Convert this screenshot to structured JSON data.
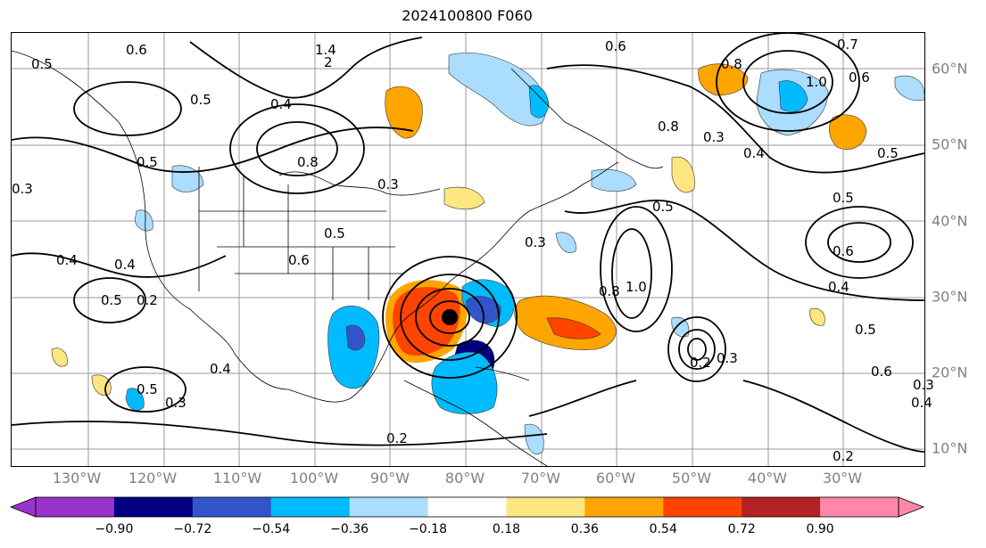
{
  "title": "2024100800 F060",
  "lon_labels": [
    "130°W",
    "120°W",
    "110°W",
    "100°W",
    "90°W",
    "80°W",
    "70°W",
    "60°W",
    "50°W",
    "40°W",
    "30°W"
  ],
  "lat_labels": [
    "60°N",
    "50°N",
    "40°N",
    "30°N",
    "20°N",
    "10°N"
  ],
  "colorbar": {
    "ticks": [
      "−0.90",
      "−0.72",
      "−0.54",
      "−0.36",
      "−0.18",
      "0.18",
      "0.36",
      "0.54",
      "0.72",
      "0.90"
    ],
    "colors": [
      "#9933cc",
      "#000080",
      "#3355cc",
      "#00bbff",
      "#aaddff",
      "#ffffff",
      "#ffe680",
      "#ffa500",
      "#ff4400",
      "#b22222",
      "#ff88aa",
      "#ff88aa"
    ]
  },
  "contour_labels": [
    "0.6",
    "0.5",
    "0.5",
    "1.4",
    "2",
    "0.4",
    "0.8",
    "0.5",
    "0.3",
    "0.3",
    "0.4",
    "0.5",
    "0.2",
    "0.4",
    "0.3",
    "0.5",
    "0.4",
    "0.2",
    "0.3",
    "0.5",
    "0.6",
    "0.8",
    "1.0",
    "0.5",
    "0.8",
    "0.3",
    "0.4",
    "0.4",
    "0.5",
    "0.6",
    "0.4",
    "0.3",
    "0.2",
    "0.7",
    "0.6",
    "0.5",
    "0.3",
    "0.8",
    "0.5",
    "1.0",
    "0.6",
    "0.2",
    "0.6"
  ],
  "fill_colors": {
    "light_blue": "#aaddff",
    "blue": "#00bbff",
    "mid_blue": "#3355cc",
    "navy": "#000080",
    "yellow": "#ffe680",
    "orange": "#ffa500",
    "red": "#ff4400",
    "dark_red": "#b22222"
  },
  "marker": "hurricane-center-marker"
}
